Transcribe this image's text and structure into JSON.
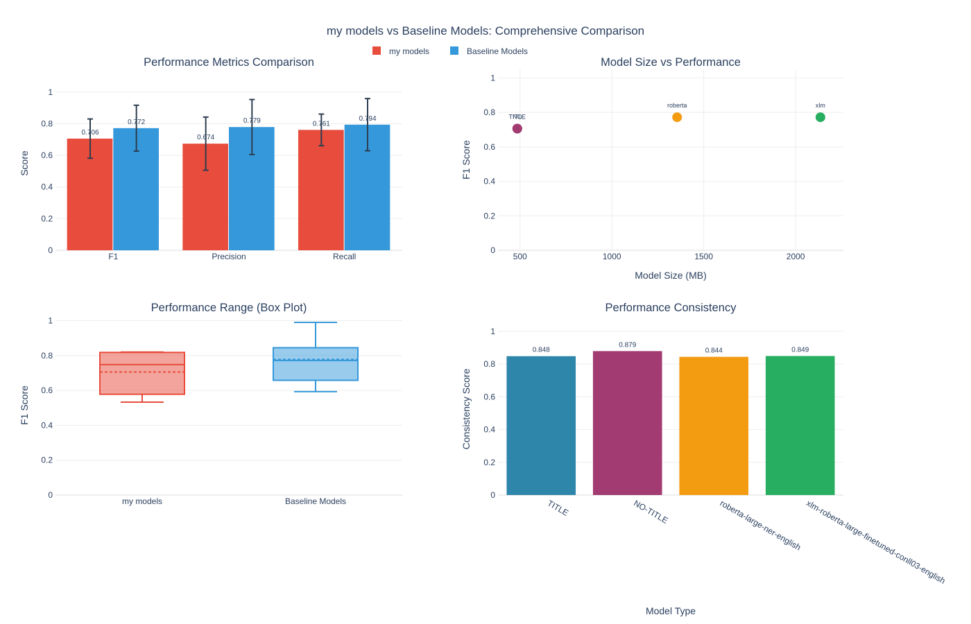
{
  "title": "my models vs Baseline Models: Comprehensive Comparison",
  "legend": [
    {
      "label": "my models",
      "color": "#e74c3c"
    },
    {
      "label": "Baseline Models",
      "color": "#3498db"
    }
  ],
  "chart_data": [
    {
      "type": "bar",
      "title": "Performance Metrics Comparison",
      "xlabel": "",
      "ylabel": "Score",
      "ylim": [
        0,
        1.1
      ],
      "yticks": [
        0,
        0.2,
        0.4,
        0.6,
        0.8,
        1
      ],
      "categories": [
        "F1",
        "Precision",
        "Recall"
      ],
      "series": [
        {
          "name": "my models",
          "color": "#e74c3c",
          "values": [
            0.706,
            0.674,
            0.761
          ],
          "labels": [
            "0.706",
            "0.674",
            "0.761"
          ],
          "error": [
            0.124,
            0.168,
            0.1
          ]
        },
        {
          "name": "Baseline Models",
          "color": "#3498db",
          "values": [
            0.772,
            0.779,
            0.794
          ],
          "labels": [
            "0.772",
            "0.779",
            "0.794"
          ],
          "error": [
            0.145,
            0.174,
            0.165
          ]
        }
      ],
      "grid": true
    },
    {
      "type": "scatter",
      "title": "Model Size vs Performance",
      "xlabel": "Model Size (MB)",
      "ylabel": "F1 Score",
      "xlim": [
        380,
        2260
      ],
      "ylim": [
        0,
        1.05
      ],
      "xticks": [
        500,
        1000,
        1500,
        2000
      ],
      "yticks": [
        0,
        0.2,
        0.4,
        0.6,
        0.8,
        1
      ],
      "points": [
        {
          "label": "TITLE",
          "x": 485,
          "y": 0.706,
          "color": "#a23b72"
        },
        {
          "label": "NO",
          "x": 485,
          "y": 0.706,
          "color": "#a23b72"
        },
        {
          "label": "roberta",
          "x": 1355,
          "y": 0.772,
          "color": "#f39c12"
        },
        {
          "label": "xlm",
          "x": 2135,
          "y": 0.772,
          "color": "#27ae60"
        }
      ],
      "grid": true
    },
    {
      "type": "box",
      "title": "Performance Range (Box Plot)",
      "xlabel": "",
      "ylabel": "F1 Score",
      "ylim": [
        0,
        1.03
      ],
      "yticks": [
        0,
        0.2,
        0.4,
        0.6,
        0.8,
        1
      ],
      "categories": [
        "my models",
        "Baseline Models"
      ],
      "boxes": [
        {
          "name": "my models",
          "color": "#e74c3c",
          "fill": "rgba(231,76,60,0.5)",
          "min": 0.533,
          "q1": 0.578,
          "median": 0.748,
          "q3": 0.818,
          "max": 0.82,
          "mean": 0.706
        },
        {
          "name": "Baseline Models",
          "color": "#3498db",
          "fill": "rgba(52,152,219,0.5)",
          "min": 0.593,
          "q1": 0.658,
          "median": 0.772,
          "q3": 0.845,
          "max": 0.99,
          "mean": 0.778
        }
      ],
      "grid": true
    },
    {
      "type": "bar",
      "title": "Performance Consistency",
      "xlabel": "Model Type",
      "ylabel": "Consistency Score",
      "ylim": [
        0,
        1.05
      ],
      "yticks": [
        0,
        0.2,
        0.4,
        0.6,
        0.8,
        1
      ],
      "categories": [
        "TITLE",
        "NO-TITLE",
        "roberta-large-ner-english",
        "xlm-roberta-large-finetuned-conll03-english"
      ],
      "values": [
        0.848,
        0.879,
        0.844,
        0.849
      ],
      "labels": [
        "0.848",
        "0.879",
        "0.844",
        "0.849"
      ],
      "colors": [
        "#2e86ab",
        "#a23b72",
        "#f39c12",
        "#27ae60"
      ],
      "grid": true
    }
  ]
}
